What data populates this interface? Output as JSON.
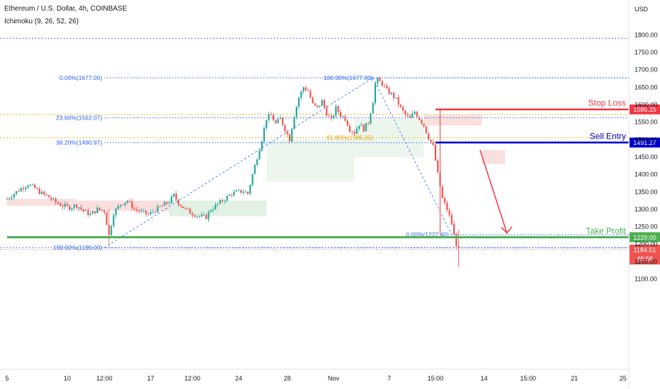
{
  "header": {
    "symbol": "Ethereum / U.S. Dollar, 4h, COINBASE",
    "indicator": "Ichimoku (9, 26, 52, 26)"
  },
  "chart_data": {
    "type": "candlestick",
    "currency": "USD",
    "ylim": [
      1080,
      1850
    ],
    "y_ticks": [
      1100,
      1150,
      1200,
      1250,
      1300,
      1350,
      1400,
      1450,
      1500,
      1550,
      1600,
      1650,
      1700,
      1750,
      1800
    ],
    "x_ticks": [
      {
        "label": "5",
        "i": 0
      },
      {
        "label": "10",
        "i": 26
      },
      {
        "label": "12:00",
        "i": 42
      },
      {
        "label": "17",
        "i": 62
      },
      {
        "label": "12:00",
        "i": 80
      },
      {
        "label": "24",
        "i": 100
      },
      {
        "label": "28",
        "i": 121
      },
      {
        "label": "Nov",
        "i": 141
      },
      {
        "label": "7",
        "i": 165
      },
      {
        "label": "15:00",
        "i": 185
      },
      {
        "label": "14",
        "i": 206
      },
      {
        "label": "15:00",
        "i": 225
      },
      {
        "label": "21",
        "i": 245
      },
      {
        "label": "25",
        "i": 266
      }
    ],
    "close_path": [
      [
        0,
        1330
      ],
      [
        3,
        1345
      ],
      [
        6,
        1360
      ],
      [
        9,
        1372
      ],
      [
        12,
        1360
      ],
      [
        15,
        1345
      ],
      [
        18,
        1335
      ],
      [
        21,
        1320
      ],
      [
        24,
        1310
      ],
      [
        27,
        1305
      ],
      [
        30,
        1312
      ],
      [
        33,
        1295
      ],
      [
        36,
        1285
      ],
      [
        39,
        1300
      ],
      [
        42,
        1295
      ],
      [
        44,
        1225
      ],
      [
        46,
        1290
      ],
      [
        49,
        1315
      ],
      [
        52,
        1325
      ],
      [
        55,
        1300
      ],
      [
        58,
        1292
      ],
      [
        61,
        1285
      ],
      [
        64,
        1298
      ],
      [
        67,
        1310
      ],
      [
        70,
        1322
      ],
      [
        72,
        1340
      ],
      [
        74,
        1318
      ],
      [
        77,
        1300
      ],
      [
        80,
        1288
      ],
      [
        83,
        1280
      ],
      [
        86,
        1278
      ],
      [
        88,
        1300
      ],
      [
        91,
        1315
      ],
      [
        94,
        1330
      ],
      [
        97,
        1345
      ],
      [
        100,
        1350
      ],
      [
        102,
        1352
      ],
      [
        104,
        1345
      ],
      [
        106,
        1400
      ],
      [
        108,
        1450
      ],
      [
        110,
        1500
      ],
      [
        112,
        1560
      ],
      [
        114,
        1570
      ],
      [
        116,
        1545
      ],
      [
        118,
        1560
      ],
      [
        120,
        1530
      ],
      [
        122,
        1500
      ],
      [
        124,
        1570
      ],
      [
        126,
        1620
      ],
      [
        128,
        1650
      ],
      [
        130,
        1640
      ],
      [
        132,
        1600
      ],
      [
        134,
        1590
      ],
      [
        136,
        1610
      ],
      [
        138,
        1575
      ],
      [
        140,
        1555
      ],
      [
        142,
        1590
      ],
      [
        144,
        1570
      ],
      [
        146,
        1560
      ],
      [
        148,
        1530
      ],
      [
        150,
        1520
      ],
      [
        152,
        1545
      ],
      [
        154,
        1530
      ],
      [
        156,
        1550
      ],
      [
        158,
        1610
      ],
      [
        159,
        1660
      ],
      [
        160,
        1670
      ],
      [
        162,
        1660
      ],
      [
        164,
        1640
      ],
      [
        166,
        1630
      ],
      [
        168,
        1615
      ],
      [
        170,
        1590
      ],
      [
        172,
        1570
      ],
      [
        174,
        1560
      ],
      [
        176,
        1580
      ],
      [
        178,
        1560
      ],
      [
        180,
        1540
      ],
      [
        182,
        1505
      ],
      [
        184,
        1480
      ],
      [
        186,
        1400
      ],
      [
        188,
        1330
      ],
      [
        190,
        1300
      ],
      [
        192,
        1260
      ],
      [
        193,
        1225
      ],
      [
        194,
        1200
      ],
      [
        195,
        1184.51
      ]
    ],
    "ichimoku_cloud": [
      {
        "from": 0,
        "to": 30,
        "top": 1330,
        "bottom": 1310,
        "color": "#f8d4d4"
      },
      {
        "from": 30,
        "to": 70,
        "top": 1325,
        "bottom": 1295,
        "color": "#f8d4d4"
      },
      {
        "from": 70,
        "to": 112,
        "top": 1325,
        "bottom": 1280,
        "color": "#d7ecd9"
      },
      {
        "from": 112,
        "to": 150,
        "top": 1500,
        "bottom": 1380,
        "color": "#e6f3e7"
      },
      {
        "from": 150,
        "to": 180,
        "top": 1560,
        "bottom": 1450,
        "color": "#e6f3e7"
      },
      {
        "from": 180,
        "to": 205,
        "top": 1570,
        "bottom": 1540,
        "color": "#f8d4d4"
      },
      {
        "from": 205,
        "to": 215,
        "top": 1470,
        "bottom": 1430,
        "color": "#f8d4d4"
      }
    ],
    "fibonacci_1": {
      "levels": [
        {
          "label": "0.00%(1677.00)",
          "price": 1677.0
        },
        {
          "label": "23.60%(1562.07)",
          "price": 1562.07
        },
        {
          "label": "38.20%(1490.97)",
          "price": 1490.97
        },
        {
          "label": "100.00%(1190.00)",
          "price": 1190.0
        }
      ]
    },
    "fibonacci_2": {
      "levels": [
        {
          "label": "100.00%(1677.00)",
          "price": 1677.0
        },
        {
          "label": "61.80%(1505.25)",
          "price": 1505.25
        },
        {
          "label": "0.00%(1227.40)",
          "price": 1227.4
        }
      ]
    },
    "trade_levels": [
      {
        "label": "Stop Loss",
        "price": 1586.25,
        "badge": "1586.25",
        "color": "#f23645"
      },
      {
        "label": "Sell Entry",
        "price": 1491.27,
        "badge": "1491.27",
        "color": "#0000cc"
      },
      {
        "label": "Take Profit",
        "price": 1220.0,
        "badge": "1220.00",
        "color": "#4caf50"
      }
    ],
    "dotted_lines": [
      {
        "price": 1790,
        "color": "#2962ff"
      },
      {
        "price": 1572,
        "color": "#f2b100"
      },
      {
        "price": 1505.25,
        "color": "#f2b100"
      },
      {
        "price": 1190,
        "color": "#2962ff"
      }
    ],
    "current_price": {
      "value": "1184.51",
      "countdown": "48:58"
    }
  }
}
